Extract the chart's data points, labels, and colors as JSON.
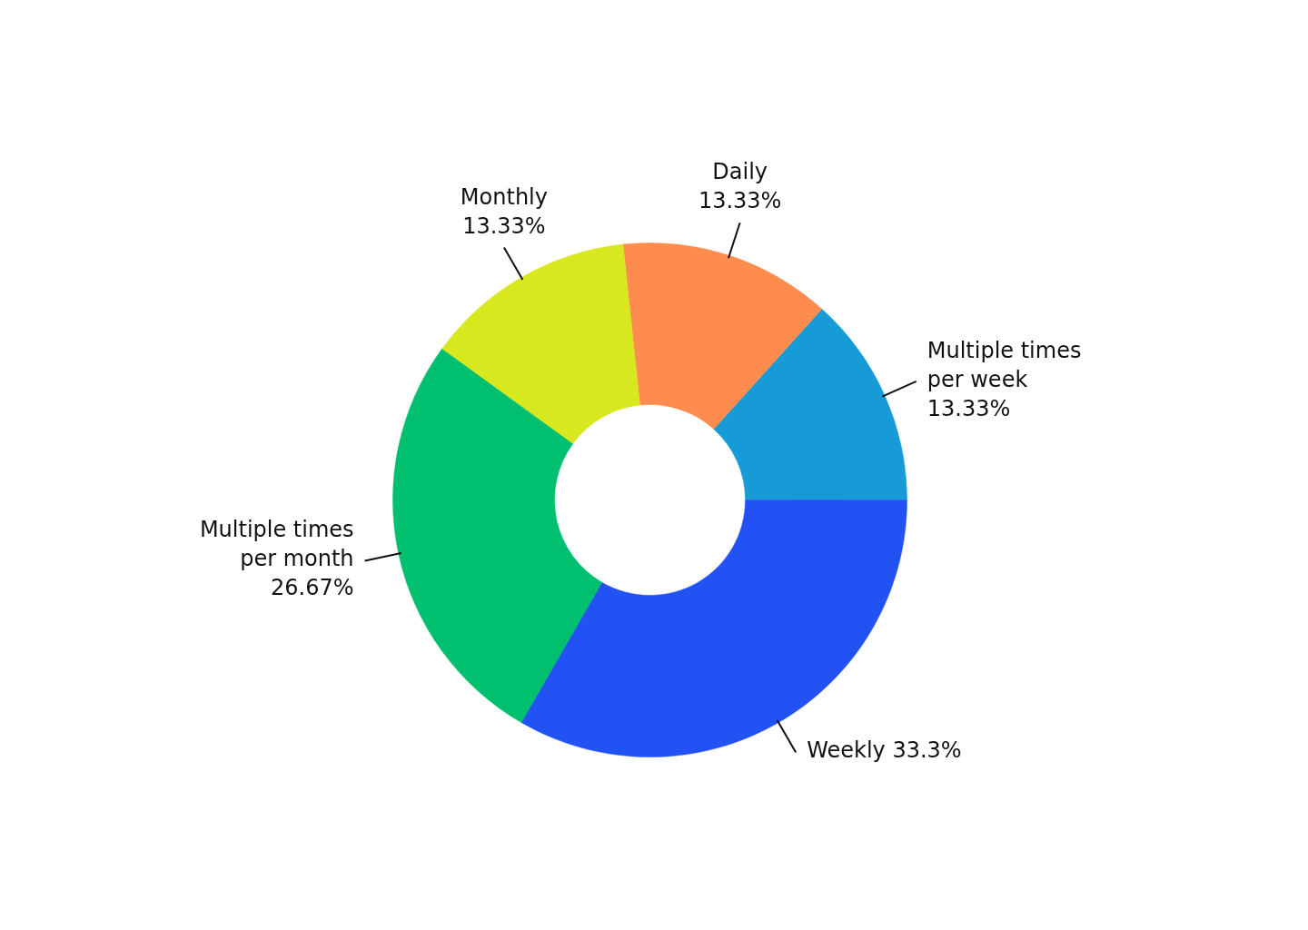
{
  "chart_data": {
    "type": "donut",
    "categories": [
      "Multiple times per week",
      "Daily",
      "Monthly",
      "Multiple times per month",
      "Weekly"
    ],
    "values": [
      13.33,
      13.33,
      13.33,
      26.67,
      33.3
    ],
    "colors": [
      "#179bd7",
      "#fe8c4e",
      "#d7e81f",
      "#00bf6f",
      "#2352f4"
    ],
    "value_labels": [
      "13.33%",
      "13.33%",
      "13.33%",
      "26.67%",
      "33.3%"
    ]
  }
}
